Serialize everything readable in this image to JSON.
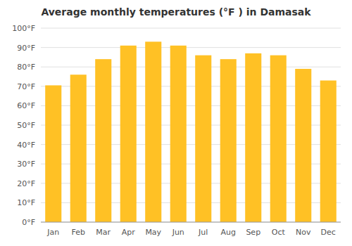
{
  "chart_data": {
    "type": "bar",
    "title": "Average monthly temperatures (°F ) in Damasak",
    "categories": [
      "Jan",
      "Feb",
      "Mar",
      "Apr",
      "May",
      "Jun",
      "Jul",
      "Aug",
      "Sep",
      "Oct",
      "Nov",
      "Dec"
    ],
    "values": [
      70.5,
      76.0,
      84.0,
      91.0,
      93.0,
      91.0,
      86.0,
      84.0,
      87.0,
      86.0,
      79.0,
      73.0
    ],
    "color": "#FFC125",
    "ylim": [
      0,
      100
    ],
    "yticks": [
      {
        "value": 0,
        "label": "0°F"
      },
      {
        "value": 10,
        "label": "10°F"
      },
      {
        "value": 20,
        "label": "20°F"
      },
      {
        "value": 30,
        "label": "30°F"
      },
      {
        "value": 40,
        "label": "40°F"
      },
      {
        "value": 50,
        "label": "50°F"
      },
      {
        "value": 60,
        "label": "60°F"
      },
      {
        "value": 70,
        "label": "70°F"
      },
      {
        "value": 80,
        "label": "80°F"
      },
      {
        "value": 90,
        "label": "90°F"
      },
      {
        "value": 100,
        "label": "100°F"
      }
    ],
    "grid": true
  }
}
